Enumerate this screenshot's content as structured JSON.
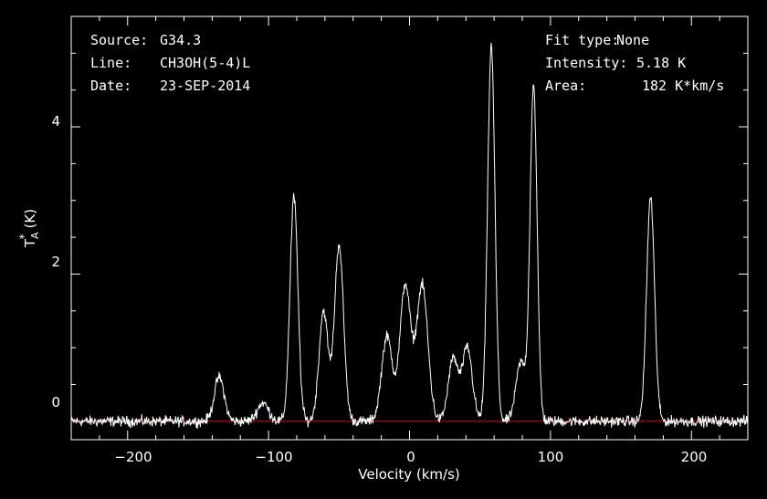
{
  "header": {
    "source_label": "Source:",
    "source_value": "G34.3",
    "line_label": "Line:",
    "line_value": "CH3OH(5-4)L",
    "date_label": "Date:",
    "date_value": "23-SEP-2014",
    "fit_label": "Fit type:",
    "fit_value": "None",
    "intensity_label": "Intensity:",
    "intensity_value": "5.18 K",
    "area_label": "Area:",
    "area_value": "182 K*km/s"
  },
  "chart_data": {
    "type": "line",
    "title": "",
    "xlabel": "Velocity (km/s)",
    "ylabel_main": "T",
    "ylabel_sub": "A",
    "ylabel_sup": "*",
    "ylabel_unit": "(K)",
    "xlim": [
      -240,
      240
    ],
    "ylim": [
      -0.25,
      5.5
    ],
    "xticks": [
      -200,
      -100,
      0,
      100,
      200
    ],
    "xtick_labels": [
      "−200",
      "−100",
      "0",
      "100",
      "200"
    ],
    "yticks": [
      0,
      2,
      4
    ],
    "ytick_labels": [
      "0",
      "2",
      "4"
    ],
    "baseline": 0,
    "colors": {
      "background": "#000000",
      "frame": "#ffffff",
      "spectrum": "#ffffff",
      "baseline": "#cc0000"
    },
    "grid": false,
    "noise_rms": 0.05,
    "series": [
      {
        "peaks": [
          {
            "center": -135,
            "amplitude": 0.6,
            "width": 3.5
          },
          {
            "center": -104,
            "amplitude": 0.25,
            "width": 4.0
          },
          {
            "center": -82,
            "amplitude": 3.05,
            "width": 2.8
          },
          {
            "center": -61,
            "amplitude": 1.5,
            "width": 3.2
          },
          {
            "center": -50,
            "amplitude": 2.4,
            "width": 3.2
          },
          {
            "center": -16,
            "amplitude": 1.15,
            "width": 3.8
          },
          {
            "center": -3,
            "amplitude": 1.85,
            "width": 3.8
          },
          {
            "center": 9,
            "amplitude": 1.85,
            "width": 4.0
          },
          {
            "center": 31,
            "amplitude": 0.85,
            "width": 3.5
          },
          {
            "center": 41,
            "amplitude": 1.0,
            "width": 3.5
          },
          {
            "center": 58,
            "amplitude": 5.1,
            "width": 2.6
          },
          {
            "center": 79,
            "amplitude": 0.8,
            "width": 3.5
          },
          {
            "center": 88,
            "amplitude": 4.55,
            "width": 2.5
          },
          {
            "center": 171,
            "amplitude": 3.05,
            "width": 2.8
          }
        ]
      }
    ]
  }
}
